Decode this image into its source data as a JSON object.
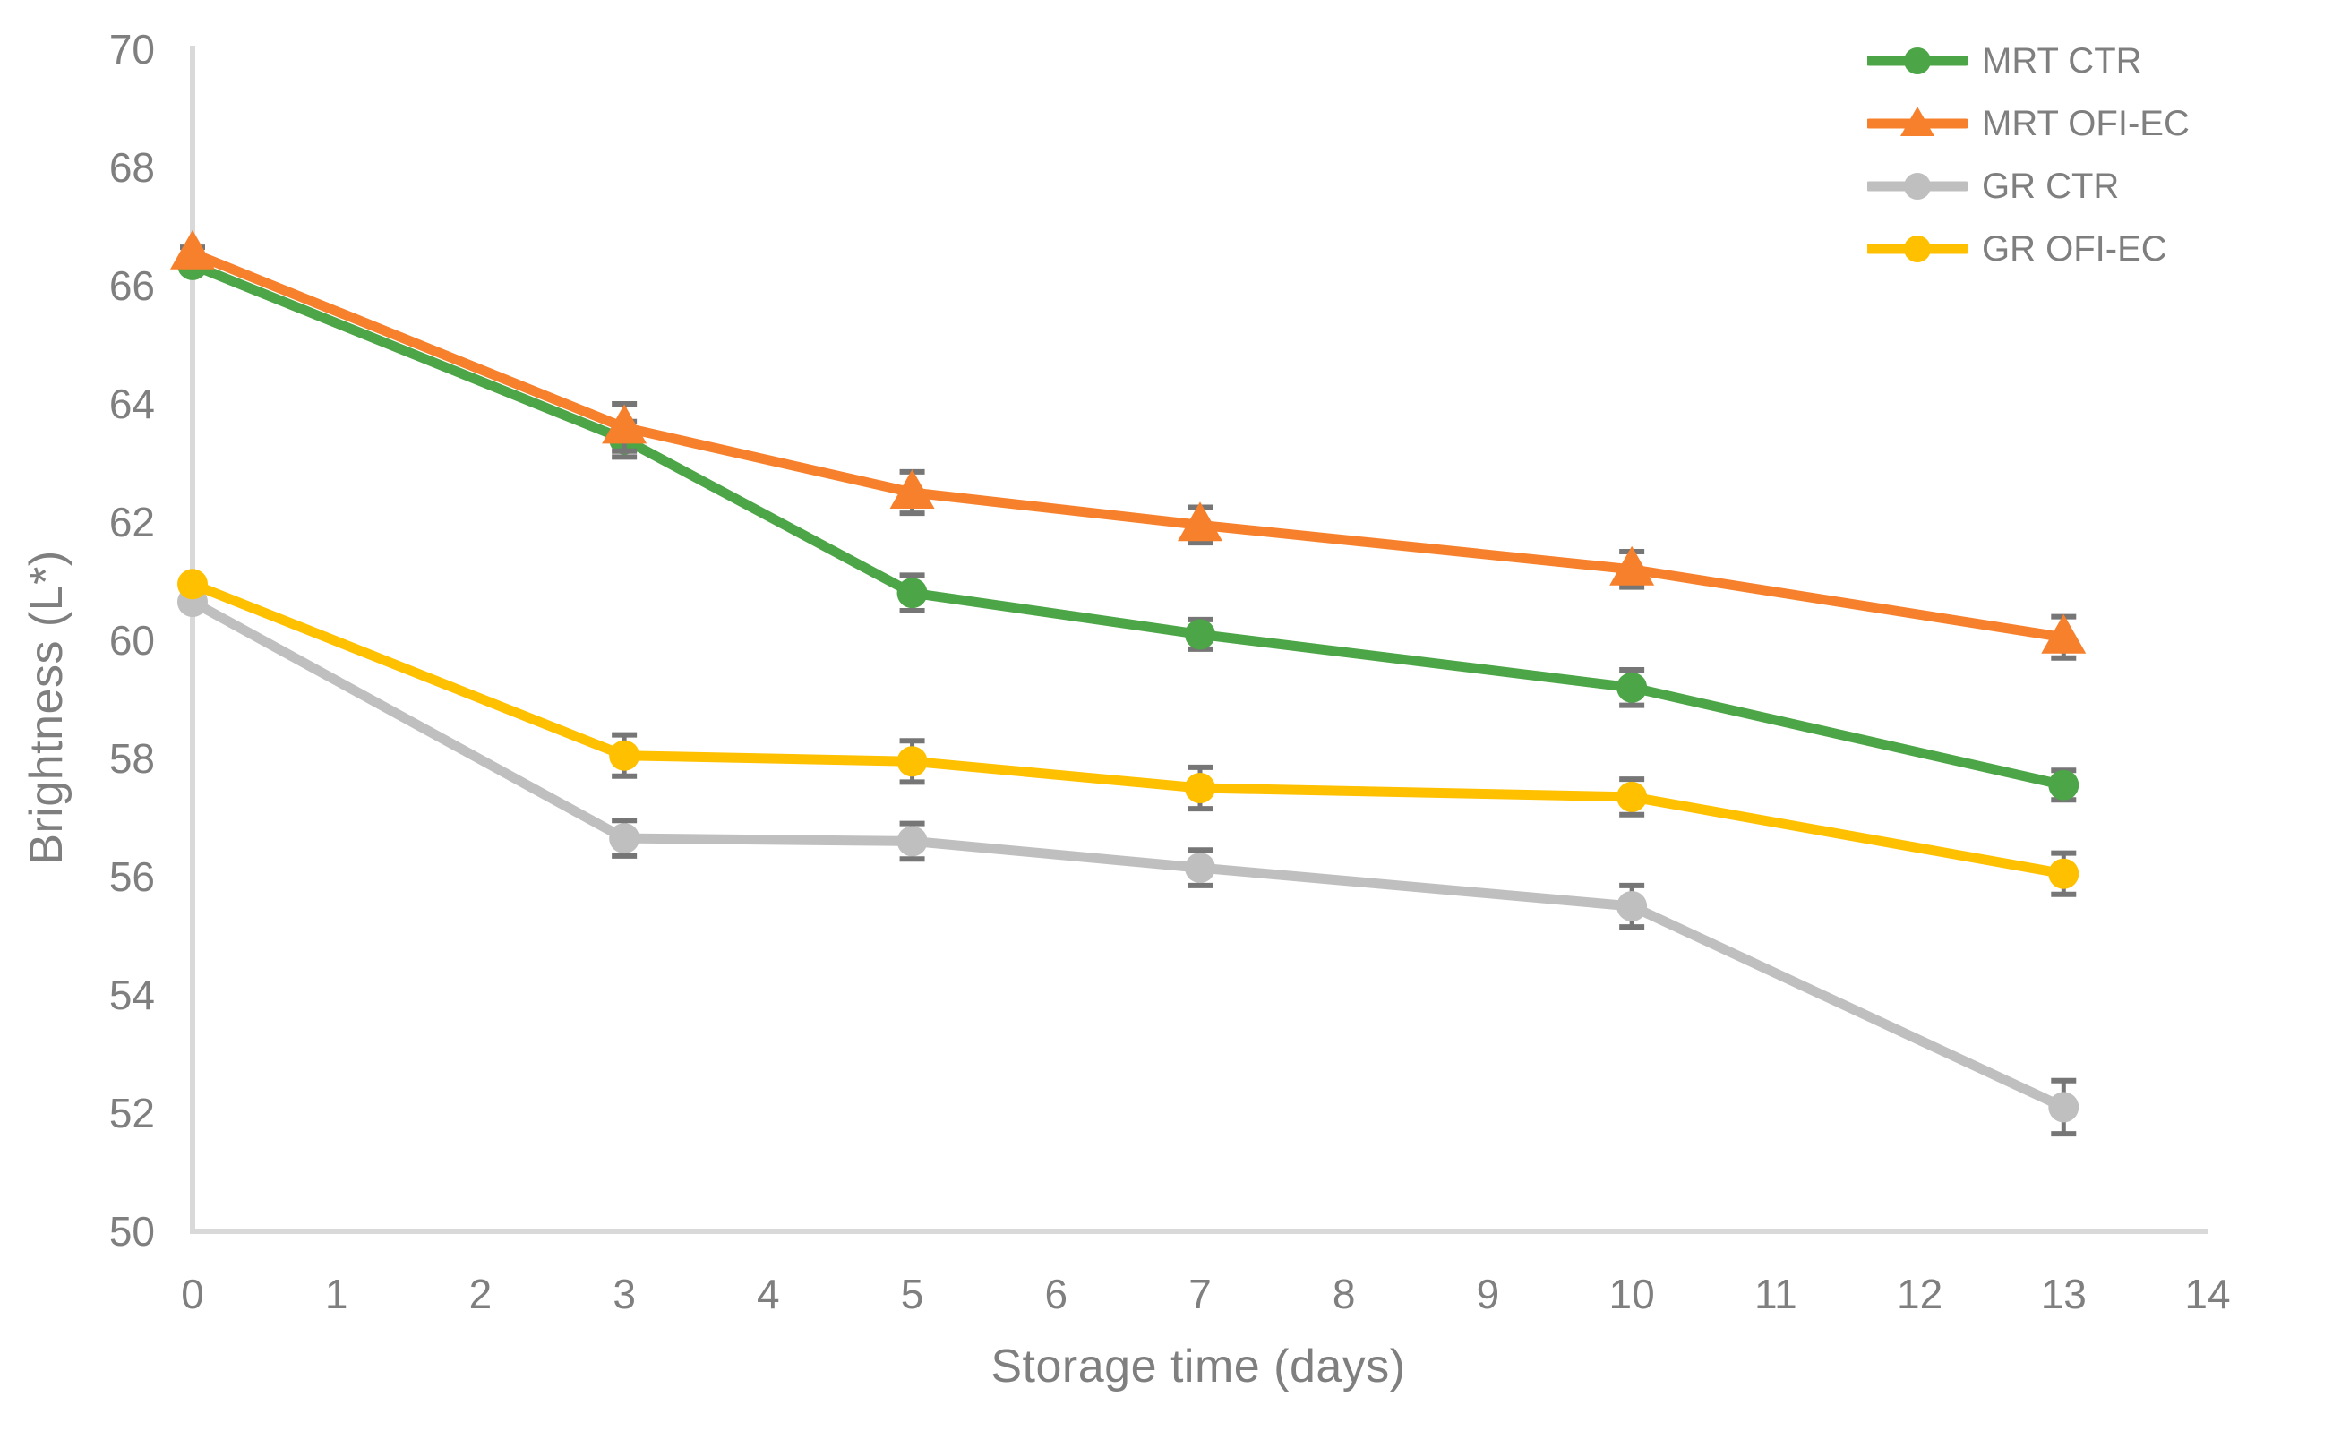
{
  "chart_data": {
    "type": "line",
    "title": "",
    "xlabel": "Storage time (days)",
    "ylabel": "Brightness (L*)",
    "xlim": [
      0,
      14
    ],
    "ylim": [
      50,
      70
    ],
    "x_ticks": [
      0,
      1,
      2,
      3,
      4,
      5,
      6,
      7,
      8,
      9,
      10,
      11,
      12,
      13,
      14
    ],
    "y_ticks": [
      50,
      52,
      54,
      56,
      58,
      60,
      62,
      64,
      66,
      68,
      70
    ],
    "grid": false,
    "legend_position": "top-right",
    "x": [
      0,
      3,
      5,
      7,
      10,
      13
    ],
    "series": [
      {
        "name": "MRT CTR",
        "color": "#4CA546",
        "marker": "circle",
        "values": [
          66.35,
          63.4,
          60.8,
          60.1,
          59.2,
          57.55
        ],
        "errors": [
          0.1,
          0.3,
          0.3,
          0.25,
          0.3,
          0.25
        ]
      },
      {
        "name": "MRT OFI-EC",
        "color": "#F7802C",
        "marker": "triangle",
        "values": [
          66.55,
          63.6,
          62.5,
          61.95,
          61.2,
          60.05
        ],
        "errors": [
          0.1,
          0.4,
          0.35,
          0.3,
          0.3,
          0.35
        ]
      },
      {
        "name": "GR CTR",
        "color": "#BFBFBF",
        "marker": "circle",
        "values": [
          60.65,
          56.65,
          56.6,
          56.15,
          55.5,
          52.1
        ],
        "errors": [
          0.1,
          0.3,
          0.3,
          0.3,
          0.35,
          0.45
        ]
      },
      {
        "name": "GR OFI-EC",
        "color": "#FFC000",
        "marker": "circle",
        "values": [
          60.95,
          58.05,
          57.95,
          57.5,
          57.35,
          56.05
        ],
        "errors": [
          0.1,
          0.35,
          0.35,
          0.35,
          0.3,
          0.35
        ]
      }
    ],
    "colors": {
      "axis": "#D9D9D9",
      "error_bar": "#767676",
      "text": "#7F7F7F"
    }
  }
}
